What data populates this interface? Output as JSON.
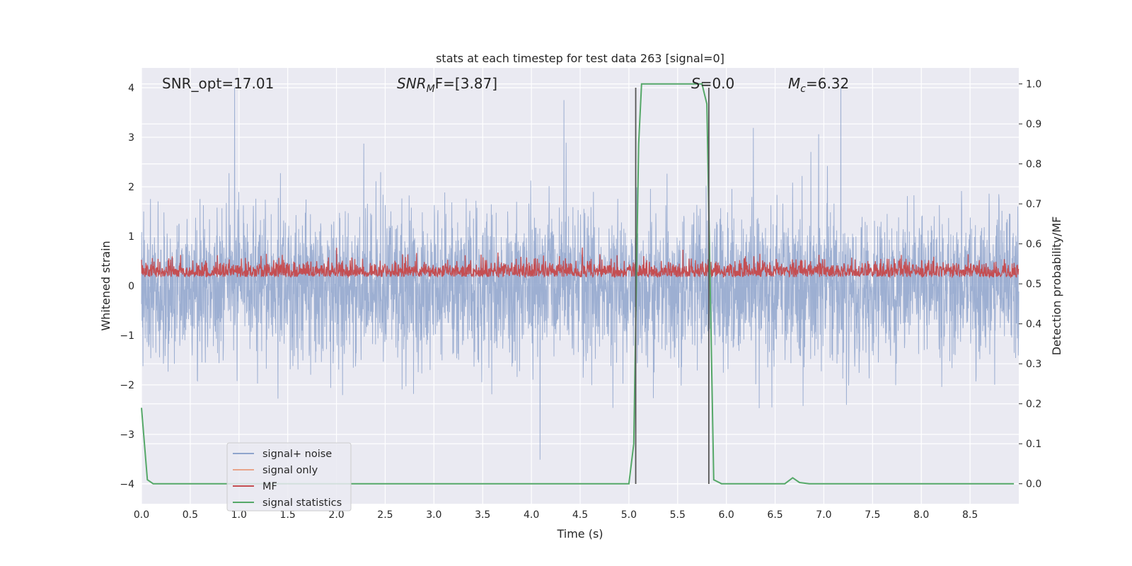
{
  "chart_data": {
    "type": "line",
    "title": "stats at each timestep for test data 263 [signal=0]",
    "xlabel": "Time (s)",
    "ylabel": "Whitened strain",
    "ylabel_right": "Detection probability/MF",
    "xlim": [
      0.0,
      9.0
    ],
    "ylim": [
      -4.4,
      4.4
    ],
    "ylim_right": [
      -0.05,
      1.04
    ],
    "x_ticks": [
      "0.0",
      "0.5",
      "1.0",
      "1.5",
      "2.0",
      "2.5",
      "3.0",
      "3.5",
      "4.0",
      "4.5",
      "5.0",
      "5.5",
      "6.0",
      "6.5",
      "7.0",
      "7.5",
      "8.0",
      "8.5"
    ],
    "y_ticks": [
      "4",
      "3",
      "2",
      "1",
      "0",
      "−1",
      "−2",
      "−3",
      "−4"
    ],
    "y_ticks_right": [
      "1.0",
      "0.9",
      "0.8",
      "0.7",
      "0.6",
      "0.5",
      "0.4",
      "0.3",
      "0.2",
      "0.1",
      "0.0"
    ],
    "grid": true,
    "legend_position": "lower-left",
    "annotations": [
      {
        "text": "SNR_opt=17.01"
      },
      {
        "base": "SNR",
        "sub": "M",
        "rest": "F=[3.87]"
      },
      {
        "base": "S",
        "rest": "=0.0"
      },
      {
        "base": "M",
        "sub": "c",
        "rest": "=6.32"
      }
    ],
    "vertical_lines": [
      5.07,
      5.82
    ],
    "series": [
      {
        "name": "signal+ noise",
        "color": "#8fa4cc",
        "axis": "left",
        "description": "noise band roughly ±2, peaks up to 4"
      },
      {
        "name": "signal only",
        "color": "#e8a48b",
        "axis": "left",
        "values": []
      },
      {
        "name": "MF",
        "color": "#c44e52",
        "axis": "right",
        "range": [
          0.5,
          0.6
        ]
      },
      {
        "name": "signal statistics",
        "color": "#55a868",
        "axis": "right",
        "x": [
          0.0,
          0.06,
          0.12,
          5.0,
          5.05,
          5.08,
          5.1,
          5.13,
          5.75,
          5.8,
          5.83,
          5.87,
          5.95,
          6.6,
          6.68,
          6.75,
          6.85,
          8.95
        ],
        "values": [
          0.19,
          0.01,
          0.0,
          0.0,
          0.1,
          0.55,
          0.85,
          1.0,
          1.0,
          0.95,
          0.55,
          0.01,
          0.0,
          0.0,
          0.015,
          0.003,
          0.0,
          0.0
        ]
      }
    ]
  }
}
